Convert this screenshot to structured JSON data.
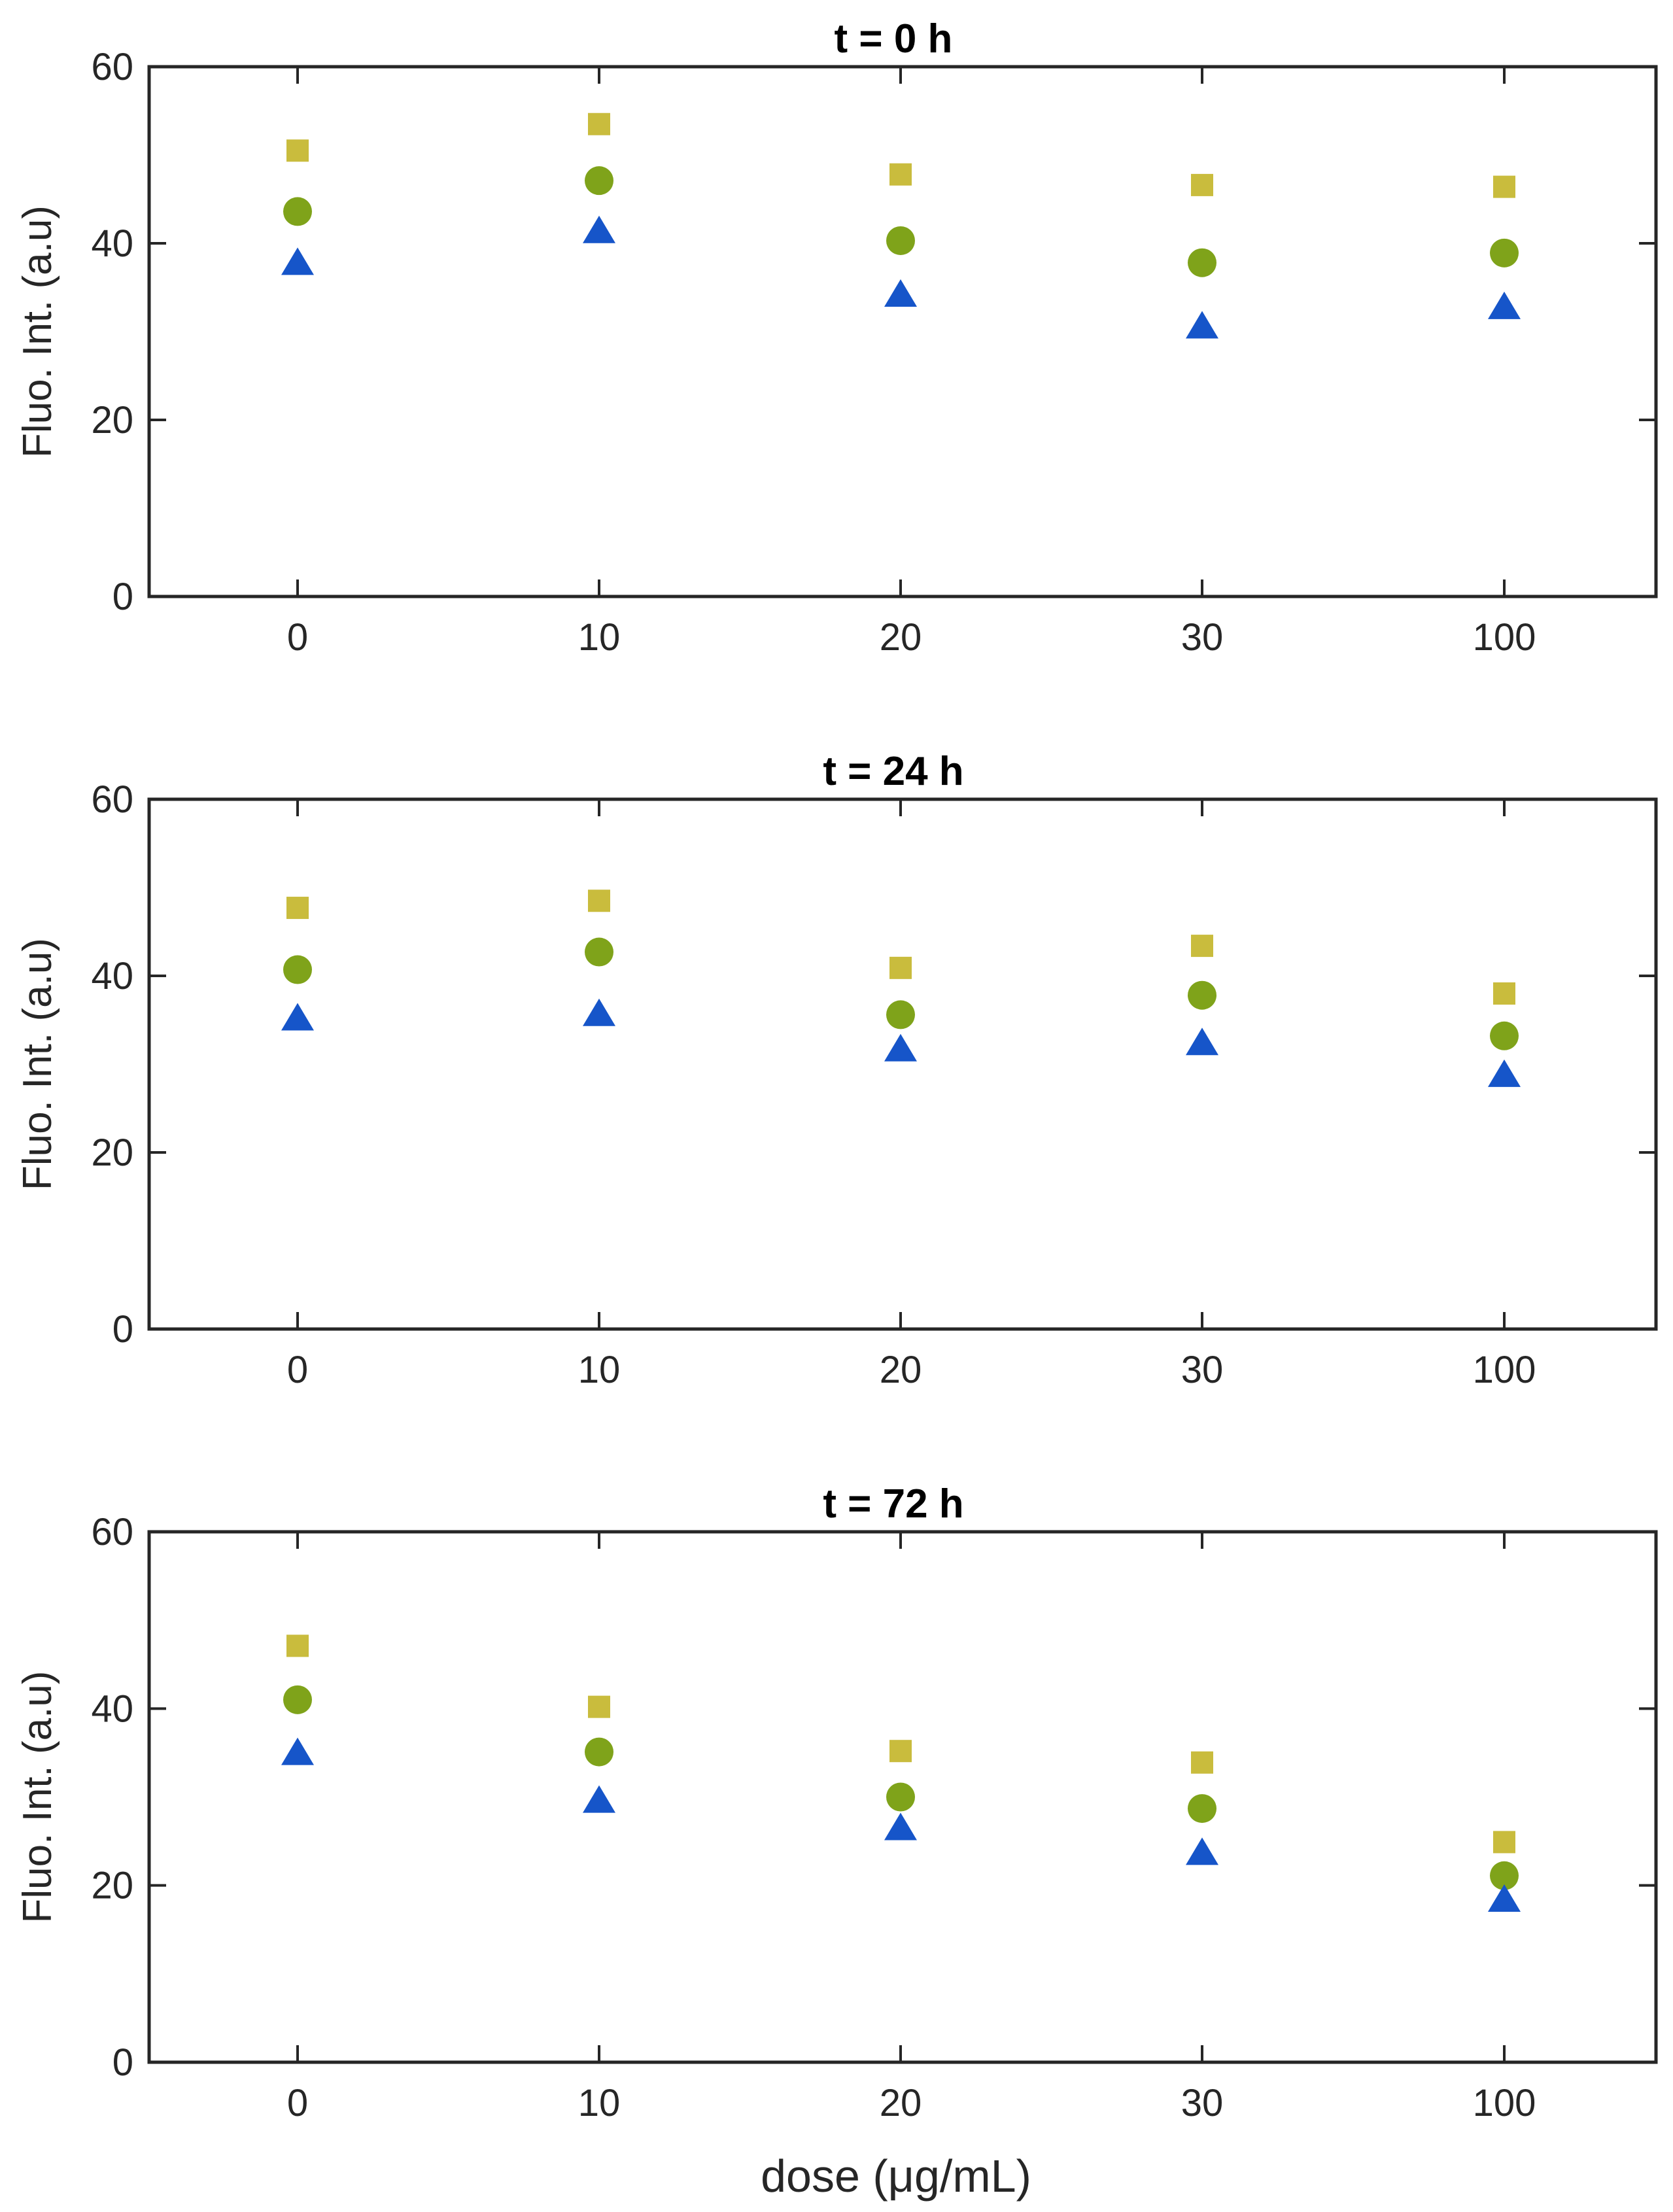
{
  "colors": {
    "square": "#C9BC3D",
    "circle": "#7FA31A",
    "triangle": "#1655C9",
    "axis": "#262626"
  },
  "chart_data": [
    {
      "type": "scatter",
      "title": "t = 0 h",
      "xlabel": "",
      "ylabel": "Fluo. Int. (a.u)",
      "categories": [
        "0",
        "10",
        "20",
        "30",
        "100"
      ],
      "ylim": [
        0,
        60
      ],
      "yticks": [
        "0",
        "20",
        "40",
        "60"
      ],
      "grid": false,
      "series": [
        {
          "name": "square-series",
          "marker": "square",
          "values": [
            50.5,
            53.5,
            47.8,
            46.6,
            46.4
          ]
        },
        {
          "name": "circle-series",
          "marker": "circle",
          "values": [
            43.6,
            47.1,
            40.3,
            37.8,
            38.9
          ]
        },
        {
          "name": "triangle-series",
          "marker": "triangle",
          "values": [
            37.6,
            41.2,
            34.0,
            30.4,
            32.6
          ]
        }
      ]
    },
    {
      "type": "scatter",
      "title": "t = 24 h",
      "xlabel": "",
      "ylabel": "Fluo. Int. (a.u)",
      "categories": [
        "0",
        "10",
        "20",
        "30",
        "100"
      ],
      "ylim": [
        0,
        60
      ],
      "yticks": [
        "0",
        "20",
        "40",
        "60"
      ],
      "grid": false,
      "series": [
        {
          "name": "square-series",
          "marker": "square",
          "values": [
            47.7,
            48.5,
            40.9,
            43.4,
            38.0
          ]
        },
        {
          "name": "circle-series",
          "marker": "circle",
          "values": [
            40.7,
            42.7,
            35.6,
            37.8,
            33.2
          ]
        },
        {
          "name": "triangle-series",
          "marker": "triangle",
          "values": [
            35.0,
            35.5,
            31.5,
            32.2,
            28.6
          ]
        }
      ]
    },
    {
      "type": "scatter",
      "title": "t = 72 h",
      "xlabel": "dose (μg/mL)",
      "ylabel": "Fluo. Int. (a.u)",
      "categories": [
        "0",
        "10",
        "20",
        "30",
        "100"
      ],
      "ylim": [
        0,
        60
      ],
      "yticks": [
        "0",
        "20",
        "40",
        "60"
      ],
      "grid": false,
      "series": [
        {
          "name": "square-series",
          "marker": "square",
          "values": [
            47.1,
            40.2,
            35.2,
            33.9,
            24.9
          ]
        },
        {
          "name": "circle-series",
          "marker": "circle",
          "values": [
            41.0,
            35.1,
            30.0,
            28.7,
            21.1
          ]
        },
        {
          "name": "triangle-series",
          "marker": "triangle",
          "values": [
            34.8,
            29.4,
            26.3,
            23.5,
            18.2
          ]
        }
      ]
    }
  ]
}
